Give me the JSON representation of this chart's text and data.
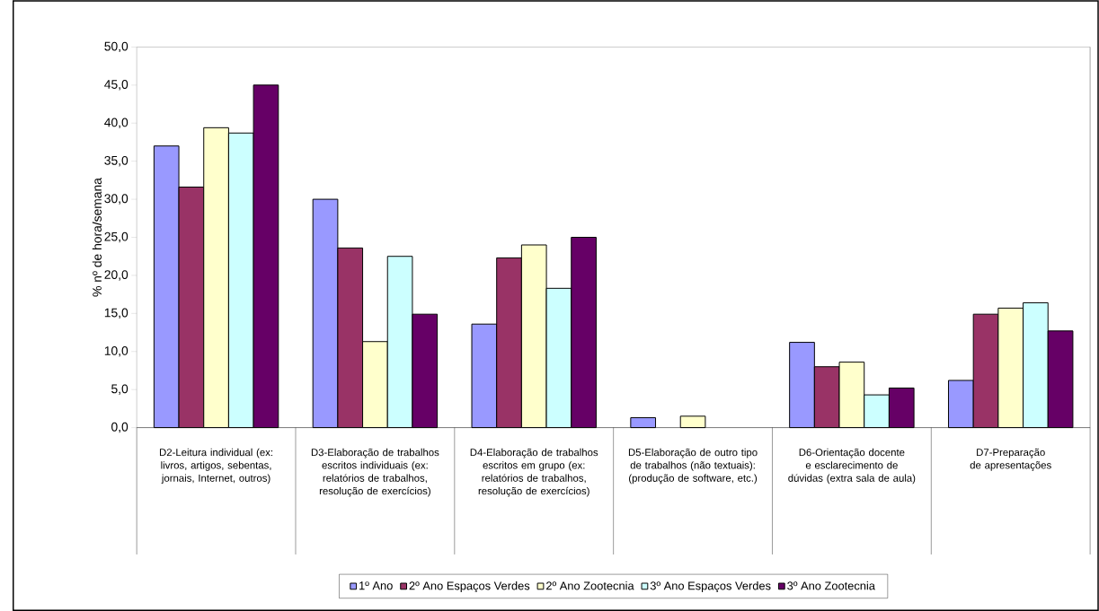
{
  "chart_data": {
    "type": "bar",
    "ylabel": "% nº de hora/semana",
    "categories": [
      "D2-Leitura individual (ex: livros, artigos, sebentas, jornais, Internet, outros)",
      "D3-Elaboração de trabalhos escritos individuais (ex: relatórios de trabalhos, resolução de exercícios)",
      "D4-Elaboração de trabalhos escritos em grupo (ex: relatórios de trabalhos, resolução de exercícios)",
      "D5-Elaboração de outro tipo de trabalhos (não textuais): (produção de software, etc.)",
      "D6-Orientação docente e esclarecimento de dúvidas (extra sala de aula)",
      "D7-Preparação de apresentações"
    ],
    "series": [
      {
        "name": "1º Ano",
        "color": "#9999ff",
        "values": [
          37.0,
          30.0,
          13.6,
          1.3,
          11.2,
          6.2
        ]
      },
      {
        "name": "2º Ano Espaços Verdes",
        "color": "#993366",
        "values": [
          31.6,
          23.6,
          22.3,
          null,
          8.0,
          14.9
        ]
      },
      {
        "name": "2º Ano Zootecnia",
        "color": "#ffffcc",
        "values": [
          39.4,
          11.3,
          24.0,
          1.5,
          8.6,
          15.7
        ]
      },
      {
        "name": "3º Ano Espaços Verdes",
        "color": "#ccffff",
        "values": [
          38.7,
          22.5,
          18.3,
          null,
          4.3,
          16.4
        ]
      },
      {
        "name": "3º Ano Zootecnia",
        "color": "#660066",
        "values": [
          45.0,
          14.9,
          25.0,
          null,
          5.2,
          12.7
        ]
      }
    ],
    "ylim": [
      0,
      50
    ],
    "yticks": [
      {
        "value": 0,
        "label": "0,0"
      },
      {
        "value": 5,
        "label": "5,0"
      },
      {
        "value": 10,
        "label": "10,0"
      },
      {
        "value": 15,
        "label": "15,0"
      },
      {
        "value": 20,
        "label": "20,0"
      },
      {
        "value": 25,
        "label": "25,0"
      },
      {
        "value": 30,
        "label": "30,0"
      },
      {
        "value": 35,
        "label": "35,0"
      },
      {
        "value": 40,
        "label": "40,0"
      },
      {
        "value": 45,
        "label": "45,0"
      },
      {
        "value": 50,
        "label": "50,0"
      }
    ],
    "legend": "bottom"
  }
}
